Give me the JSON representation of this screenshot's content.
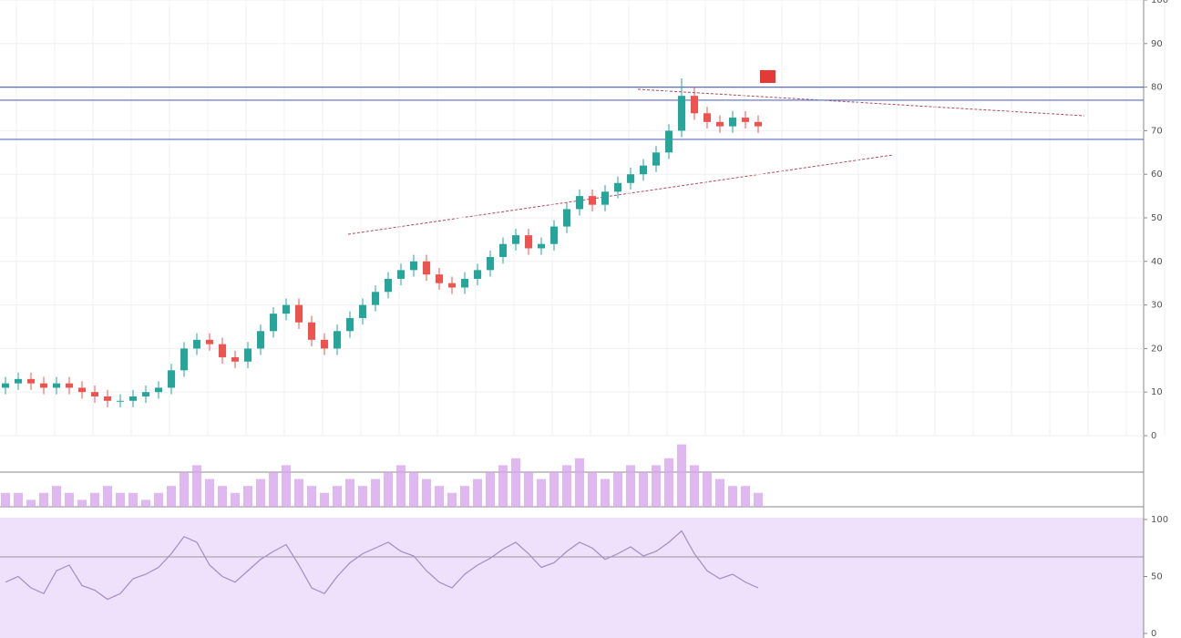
{
  "chart_data": [
    {
      "type": "candlestick",
      "up_color": "#26a69a",
      "down_color": "#ef5350",
      "open": [
        11,
        12,
        13,
        12,
        11,
        12,
        11,
        10,
        9,
        8,
        8,
        9,
        10,
        11,
        15,
        20,
        22,
        21,
        18,
        17,
        20,
        24,
        28,
        30,
        26,
        22,
        20,
        24,
        27,
        30,
        33,
        36,
        38,
        40,
        37,
        35,
        34,
        36,
        38,
        41,
        44,
        46,
        43,
        44,
        48,
        52,
        55,
        53,
        56,
        58,
        60,
        62,
        65,
        70,
        78,
        74,
        72,
        71,
        73,
        72
      ],
      "high": [
        13.5,
        14.5,
        14.5,
        13.5,
        13.5,
        13.5,
        12.5,
        11.5,
        10.5,
        9.5,
        10.5,
        11.5,
        12.5,
        16.5,
        21.5,
        23.5,
        23.5,
        22.5,
        19.5,
        21.5,
        25.5,
        29.5,
        31.5,
        31.5,
        27.5,
        23.5,
        25.5,
        28.5,
        31.5,
        34.5,
        37.5,
        39.5,
        41.5,
        41.5,
        38.5,
        36.5,
        37.5,
        39.5,
        42.5,
        45.5,
        47.5,
        47.5,
        45.5,
        49.5,
        53.5,
        56.5,
        56.5,
        57.5,
        59.5,
        61.5,
        63.5,
        66.5,
        71.5,
        82,
        80,
        75.5,
        73.5,
        74.5,
        74.5,
        73.5
      ],
      "low": [
        9.5,
        10.5,
        10.5,
        9.5,
        9.5,
        9.5,
        8.5,
        7.5,
        6.5,
        6.5,
        6.5,
        7.5,
        8.5,
        9.5,
        13.5,
        18.5,
        19.5,
        16.5,
        15.5,
        15.5,
        18.5,
        22.5,
        26.5,
        24.5,
        20.5,
        18.5,
        18.5,
        22.5,
        25.5,
        28.5,
        31.5,
        34.5,
        36.5,
        35.5,
        33.5,
        32.5,
        32.5,
        34.5,
        36.5,
        39.5,
        42.5,
        41.5,
        41.5,
        42.5,
        46.5,
        50.5,
        51.5,
        51.5,
        54.5,
        56.5,
        58.5,
        60.5,
        63.5,
        68.5,
        72.5,
        70.5,
        69.5,
        69.5,
        70.5,
        69.5
      ],
      "close": [
        12,
        13,
        12,
        11,
        12,
        11,
        10,
        9,
        8,
        8,
        9,
        10,
        11,
        15,
        20,
        22,
        21,
        18,
        17,
        20,
        24,
        28,
        30,
        26,
        22,
        20,
        24,
        27,
        30,
        33,
        36,
        38,
        40,
        37,
        35,
        34,
        36,
        38,
        41,
        44,
        46,
        43,
        44,
        48,
        52,
        55,
        53,
        56,
        58,
        60,
        62,
        65,
        70,
        78,
        74,
        72,
        71,
        73,
        72,
        71
      ],
      "levels": [
        80,
        77,
        68
      ],
      "level_color": "#5c6bc0",
      "ylim": [
        0,
        100
      ],
      "yticks": [
        0,
        10,
        20,
        30,
        40,
        50,
        60,
        70,
        80,
        90,
        100
      ],
      "grid": true
    },
    {
      "type": "bar",
      "color": "#d7a6ee",
      "values": [
        2,
        2,
        1,
        2,
        3,
        2,
        1,
        2,
        3,
        2,
        2,
        1,
        2,
        3,
        5,
        6,
        4,
        3,
        2,
        3,
        4,
        5,
        6,
        4,
        3,
        2,
        3,
        4,
        3,
        4,
        5,
        6,
        5,
        4,
        3,
        2,
        3,
        4,
        5,
        6,
        7,
        5,
        4,
        5,
        6,
        7,
        5,
        4,
        5,
        6,
        5,
        6,
        7,
        9,
        6,
        5,
        4,
        3,
        3,
        2
      ],
      "ylim": [
        0,
        10
      ]
    },
    {
      "type": "line",
      "color": "#a58bc9",
      "values": [
        45,
        50,
        40,
        35,
        55,
        60,
        42,
        38,
        30,
        35,
        48,
        52,
        58,
        70,
        85,
        80,
        60,
        50,
        45,
        55,
        65,
        72,
        78,
        60,
        40,
        35,
        50,
        62,
        70,
        75,
        80,
        72,
        68,
        55,
        45,
        40,
        52,
        60,
        66,
        74,
        80,
        70,
        58,
        62,
        72,
        80,
        75,
        65,
        70,
        76,
        68,
        72,
        80,
        90,
        70,
        55,
        48,
        52,
        45,
        40
      ],
      "ylim": [
        0,
        100
      ],
      "yticks": [
        0,
        50,
        100
      ]
    }
  ]
}
